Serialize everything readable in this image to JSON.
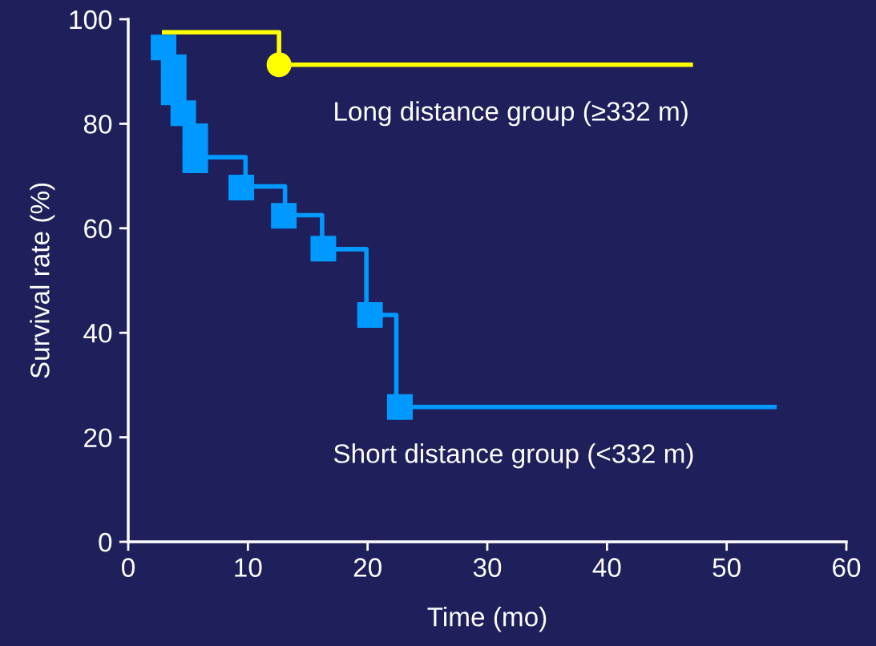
{
  "chart_data": {
    "type": "step",
    "xlabel": "Time (mo)",
    "ylabel": "Survival rate (%)",
    "xlim": [
      0,
      60
    ],
    "xticks": [
      0,
      10,
      20,
      30,
      40,
      50,
      60
    ],
    "ylim": [
      0,
      100
    ],
    "yticks": [
      0,
      20,
      40,
      60,
      80,
      100
    ],
    "grid": false,
    "legend": false,
    "series": [
      {
        "name": "Long distance group (≥332 m)",
        "color": "#ffff00",
        "marker": "none",
        "x": [
          3,
          12.6,
          47
        ],
        "values": [
          97.5,
          91.3,
          91.3
        ]
      },
      {
        "type": "scatter",
        "color": "#ffff00",
        "marker": "circle",
        "x": [
          12.6
        ],
        "values": [
          91.3
        ]
      },
      {
        "name": "Short distance group (<332 m)",
        "color": "#0099ff",
        "marker": "none",
        "x": [
          6.7,
          9.8,
          13.1,
          16.2,
          19.9,
          22.4,
          54
        ],
        "values": [
          73.6,
          68.0,
          62.5,
          56.0,
          43.4,
          25.8,
          25.8
        ]
      },
      {
        "type": "scatter",
        "color": "#0099ff",
        "marker": "square",
        "x": [
          2.95,
          3.8,
          3.8,
          4.6,
          5.6,
          5.6,
          9.45,
          13.0,
          16.3,
          20.2,
          22.7
        ],
        "values": [
          94.6,
          90.8,
          86.0,
          82.0,
          77.6,
          73.0,
          67.8,
          62.4,
          56.1,
          43.4,
          25.8
        ]
      }
    ]
  }
}
